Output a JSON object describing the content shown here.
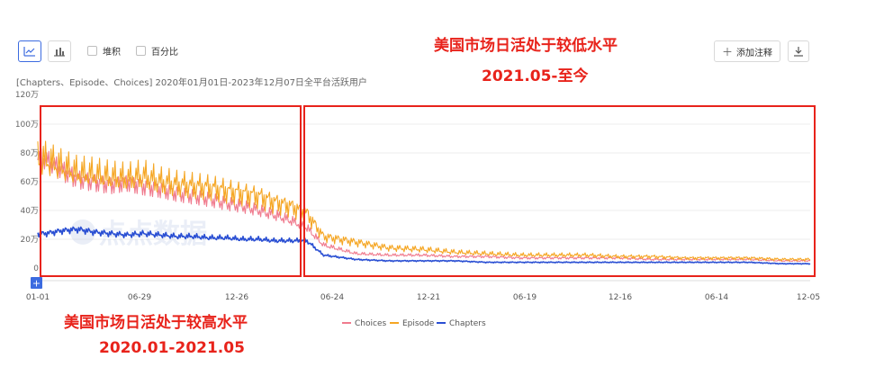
{
  "toolbar": {
    "line_icon": "line-chart-icon",
    "bar_icon": "bar-chart-icon",
    "stack_label": "堆积",
    "percent_label": "百分比",
    "annotate_label": "添加注释",
    "annotate_icon": "plus-icon",
    "download_icon": "download-icon"
  },
  "subtitle": "[Chapters、Episode、Choices] 2020年01月01日-2023年12月07日全平台活跃用户",
  "annotations": {
    "top_line1": "美国市场日活处于较低水平",
    "top_line2": "2021.05-至今",
    "bottom_line1": "美国市场日活处于较高水平",
    "bottom_line2": "2020.01-2021.05"
  },
  "watermark": "点点数据",
  "colors": {
    "choices": "#f07b8e",
    "episode": "#f5a623",
    "chapters": "#2a4fd3",
    "annotation_red": "#e8231b",
    "accent": "#3c6be0"
  },
  "chart_data": {
    "type": "line",
    "x_tick_labels": [
      "01-01",
      "06-29",
      "12-26",
      "06-24",
      "12-21",
      "06-19",
      "12-16",
      "06-14",
      "12-05"
    ],
    "x_range": [
      "2020-01-01",
      "2023-12-07"
    ],
    "y_tick_labels": [
      "0",
      "20万",
      "40万",
      "60万",
      "80万",
      "100万",
      "120万"
    ],
    "ylim": [
      0,
      120
    ],
    "y_unit": "万",
    "grid": true,
    "legend_position": "bottom-center",
    "series": [
      {
        "name": "Choices",
        "x": [
          "2020-01",
          "2020-02",
          "2020-03",
          "2020-04",
          "2020-05",
          "2020-06",
          "2020-07",
          "2020-08",
          "2020-09",
          "2020-10",
          "2020-11",
          "2020-12",
          "2021-01",
          "2021-02",
          "2021-03",
          "2021-04",
          "2021-05",
          "2021-06",
          "2021-08",
          "2021-10",
          "2021-12",
          "2022-02",
          "2022-04",
          "2022-06",
          "2022-08",
          "2022-10",
          "2022-12",
          "2023-02",
          "2023-04",
          "2023-06",
          "2023-08",
          "2023-10",
          "2023-12"
        ],
        "values": [
          75,
          68,
          62,
          60,
          58,
          60,
          57,
          55,
          52,
          50,
          48,
          45,
          43,
          40,
          37,
          33,
          28,
          16,
          10,
          9,
          9,
          8,
          8,
          7,
          7,
          7,
          7,
          6,
          6,
          6,
          6,
          5,
          5
        ]
      },
      {
        "name": "Episode",
        "x": [
          "2020-01",
          "2020-02",
          "2020-03",
          "2020-04",
          "2020-05",
          "2020-06",
          "2020-07",
          "2020-08",
          "2020-09",
          "2020-10",
          "2020-11",
          "2020-12",
          "2021-01",
          "2021-02",
          "2021-03",
          "2021-04",
          "2021-05",
          "2021-06",
          "2021-08",
          "2021-10",
          "2021-12",
          "2022-02",
          "2022-04",
          "2022-06",
          "2022-08",
          "2022-10",
          "2022-12",
          "2023-02",
          "2023-04",
          "2023-06",
          "2023-08",
          "2023-10",
          "2023-12"
        ],
        "values": [
          75,
          70,
          66,
          65,
          63,
          62,
          64,
          60,
          58,
          57,
          56,
          54,
          52,
          50,
          46,
          43,
          38,
          22,
          18,
          14,
          13,
          11,
          10,
          9,
          9,
          9,
          8,
          8,
          7,
          7,
          7,
          6,
          6
        ]
      },
      {
        "name": "Chapters",
        "x": [
          "2020-01",
          "2020-02",
          "2020-03",
          "2020-04",
          "2020-05",
          "2020-06",
          "2020-07",
          "2020-08",
          "2020-09",
          "2020-10",
          "2020-11",
          "2020-12",
          "2021-01",
          "2021-02",
          "2021-03",
          "2021-04",
          "2021-05",
          "2021-06",
          "2021-08",
          "2021-10",
          "2021-12",
          "2022-02",
          "2022-04",
          "2022-06",
          "2022-08",
          "2022-10",
          "2022-12",
          "2023-02",
          "2023-04",
          "2023-06",
          "2023-08",
          "2023-10",
          "2023-12"
        ],
        "values": [
          24,
          26,
          27,
          25,
          24,
          23,
          24,
          23,
          22,
          22,
          21,
          21,
          20,
          20,
          19,
          19,
          19,
          9,
          6,
          5,
          5,
          5,
          4,
          4,
          4,
          4,
          4,
          4,
          4,
          4,
          4,
          3,
          3
        ]
      }
    ]
  }
}
